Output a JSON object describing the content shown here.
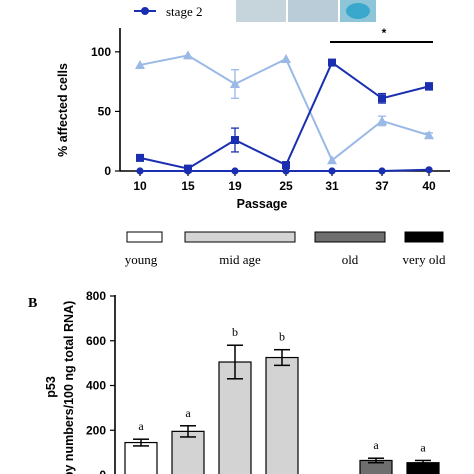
{
  "chart_data": [
    {
      "panel": "",
      "type": "line",
      "legend": [
        {
          "name": "stage 2",
          "color": "#1a2fb0"
        }
      ],
      "xlabel": "Passage",
      "ylabel": "% affected cells",
      "categories": [
        "10",
        "15",
        "19",
        "25",
        "31",
        "37",
        "40"
      ],
      "ylim": [
        0,
        120
      ],
      "yticks": [
        "0",
        "50",
        "100"
      ],
      "series": [
        {
          "name": "",
          "color": "#9ab9e6",
          "marker": "triangle",
          "values": [
            89,
            97,
            73,
            94,
            9,
            42,
            30
          ],
          "errors": [
            0,
            0,
            12,
            0,
            0,
            4,
            2
          ]
        },
        {
          "name": "",
          "color": "#1a2fb0",
          "marker": "square",
          "values": [
            11,
            2,
            26,
            5,
            91,
            61,
            71
          ],
          "errors": [
            0,
            0,
            10,
            0,
            0,
            4,
            3
          ]
        },
        {
          "name": "stage 2",
          "color": "#1a2fb0",
          "marker": "circle",
          "values": [
            0,
            0,
            0,
            0,
            0,
            0,
            1
          ],
          "errors": [
            0,
            0,
            0,
            0,
            0,
            0,
            0
          ]
        }
      ],
      "annotation": "*"
    },
    {
      "panel": "B",
      "type": "bar",
      "age_legend": [
        {
          "label": "young",
          "fill": "#ffffff"
        },
        {
          "label": "mid age",
          "fill": "#d3d3d3"
        },
        {
          "label": "old",
          "fill": "#6e6e6e"
        },
        {
          "label": "very old",
          "fill": "#000000"
        }
      ],
      "ylabel_line1": "p53",
      "ylabel_line2": "py numbers/100 ng total RNA)",
      "ylim": [
        0,
        800
      ],
      "yticks": [
        "0",
        "200",
        "400",
        "600",
        "800"
      ],
      "values": [
        145,
        195,
        505,
        525,
        0,
        0,
        65,
        55
      ],
      "errors": [
        15,
        25,
        75,
        35,
        0,
        0,
        10,
        10
      ],
      "fills": [
        "#ffffff",
        "#d3d3d3",
        "#d3d3d3",
        "#d3d3d3",
        "",
        "",
        "#6e6e6e",
        "#000000"
      ],
      "letters": [
        "a",
        "a",
        "b",
        "b",
        "",
        "",
        "a",
        "a"
      ]
    }
  ]
}
